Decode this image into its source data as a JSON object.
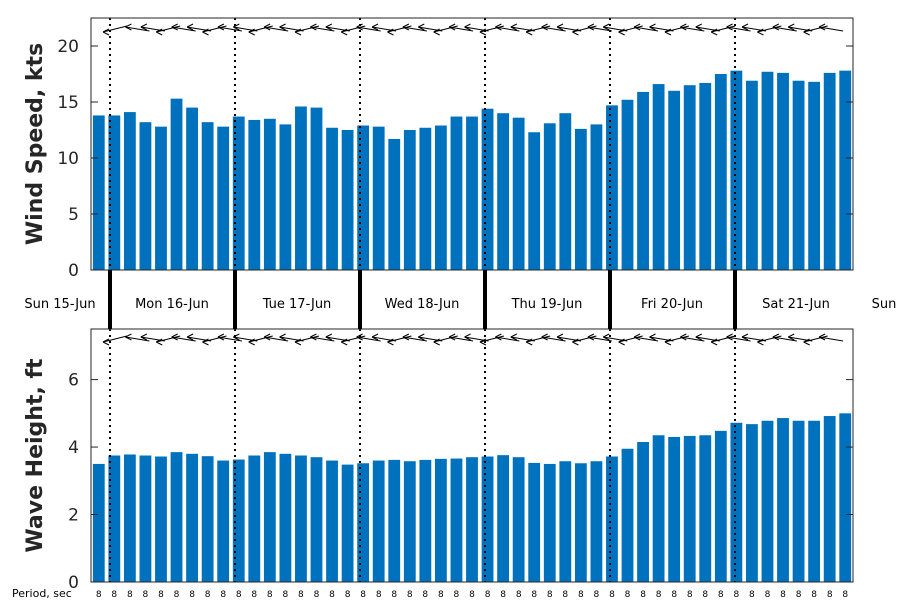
{
  "colors": {
    "bar": "#0072bd",
    "axis": "#262626",
    "grid": "#000000"
  },
  "day_labels": [
    "Sun 15-Jun",
    "Mon 16-Jun",
    "Tue 17-Jun",
    "Wed 18-Jun",
    "Thu 19-Jun",
    "Fri 20-Jun",
    "Sat 21-Jun",
    "Sun"
  ],
  "period_label": "Period, sec",
  "chart_data": [
    {
      "type": "bar",
      "ylabel": "Wind Speed, kts",
      "ylim": [
        0,
        22.5
      ],
      "yticks": [
        "0",
        "5",
        "10",
        "15",
        "20"
      ],
      "yticks_values": [
        0,
        5,
        10,
        15,
        20
      ],
      "time_step_hours": 3,
      "start": "Sun 15-Jun 18:00",
      "values": [
        13.8,
        13.8,
        14.1,
        13.2,
        12.8,
        15.3,
        14.5,
        13.2,
        12.8,
        13.7,
        13.4,
        13.5,
        13.0,
        14.6,
        14.5,
        12.7,
        12.5,
        12.9,
        12.8,
        11.7,
        12.5,
        12.7,
        12.9,
        13.7,
        13.7,
        14.4,
        14.0,
        13.6,
        12.3,
        13.1,
        14.0,
        12.6,
        13.0,
        14.7,
        15.2,
        15.9,
        16.6,
        16.0,
        16.5,
        16.7,
        17.5,
        17.8,
        16.9,
        17.7,
        17.6,
        16.9,
        16.8,
        17.6,
        17.8
      ],
      "direction_arrows": 47
    },
    {
      "type": "bar",
      "ylabel": "Wave Height, ft",
      "ylim": [
        0,
        7.5
      ],
      "yticks": [
        "0",
        "2",
        "4",
        "6"
      ],
      "yticks_values": [
        0,
        2,
        4,
        6
      ],
      "time_step_hours": 3,
      "start": "Sun 15-Jun 18:00",
      "values": [
        3.5,
        3.75,
        3.78,
        3.75,
        3.72,
        3.85,
        3.8,
        3.73,
        3.6,
        3.63,
        3.75,
        3.85,
        3.8,
        3.75,
        3.7,
        3.6,
        3.48,
        3.52,
        3.6,
        3.62,
        3.58,
        3.62,
        3.65,
        3.66,
        3.7,
        3.72,
        3.76,
        3.7,
        3.53,
        3.5,
        3.58,
        3.52,
        3.58,
        3.72,
        3.95,
        4.15,
        4.35,
        4.3,
        4.33,
        4.35,
        4.48,
        4.72,
        4.68,
        4.78,
        4.86,
        4.78,
        4.78,
        4.92,
        5.0
      ],
      "direction_arrows": 47,
      "period_values": [
        8,
        8,
        8,
        8,
        8,
        8,
        8,
        8,
        8,
        8,
        8,
        8,
        8,
        8,
        8,
        8,
        8,
        8,
        8,
        8,
        8,
        8,
        8,
        8,
        8,
        8,
        8,
        8,
        8,
        8,
        8,
        8,
        8,
        8,
        8,
        8,
        8,
        8,
        8,
        8,
        8,
        8,
        8,
        8,
        8,
        8,
        8,
        8,
        8
      ]
    }
  ]
}
